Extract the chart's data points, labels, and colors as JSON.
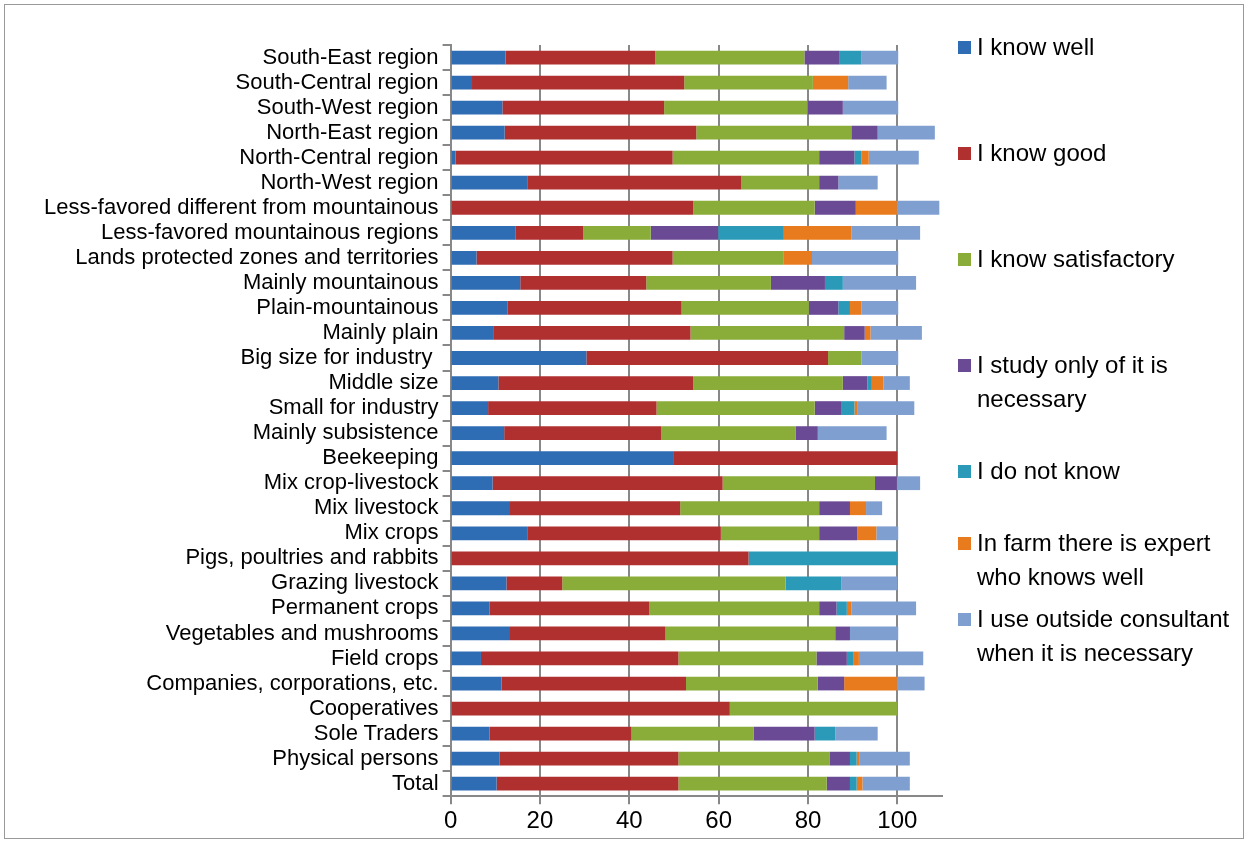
{
  "chart_data": {
    "type": "bar",
    "orientation": "horizontal",
    "stacked": true,
    "grid": "x",
    "legend": "right",
    "categories": [
      "South-East region",
      "South-Central region",
      "South-West region",
      "North-East region",
      "North-Central region",
      "North-West region",
      "Less-favored different from mountainous",
      "Less-favored mountainous regions",
      "Lands protected zones and territories",
      "Mainly mountainous",
      "Plain-mountainous",
      "Mainly plain",
      "Big size for industry ",
      "Middle size",
      "Small for industry",
      "Mainly subsistence",
      "Beekeeping",
      "Mix crop-livestock",
      "Mix livestock",
      "Mix crops",
      "Pigs, poultries and rabbits",
      "Grazing livestock",
      "Permanent crops",
      "Vegetables and mushrooms",
      "Field crops",
      "Companies, corporations, etc.",
      "Cooperatives",
      "Sole Traders",
      "Physical persons",
      "Total"
    ],
    "xlim": [
      0,
      110
    ],
    "xticks": [
      0,
      20,
      40,
      60,
      80,
      100
    ],
    "series": [
      {
        "name": "I know well",
        "color": "#2e6db4",
        "values": [
          12.3,
          4.8,
          11.6,
          12.1,
          1.1,
          17.3,
          0,
          14.6,
          5.8,
          15.6,
          12.7,
          9.7,
          30.4,
          10.7,
          8.4,
          12.0,
          50,
          9.4,
          13.3,
          17.3,
          0,
          12.5,
          8.7,
          13.3,
          6.8,
          11.4,
          0,
          8.7,
          11.0,
          10.3
        ]
      },
      {
        "name": "I know good",
        "color": "#b03030",
        "values": [
          33.5,
          47.5,
          36.2,
          42.9,
          48.6,
          47.8,
          54.3,
          15.1,
          43.9,
          28.2,
          39.0,
          44.0,
          54.1,
          43.6,
          37.7,
          35.1,
          50,
          51.5,
          38.1,
          43.2,
          66.7,
          12.5,
          35.8,
          34.8,
          44.2,
          41.3,
          62.5,
          31.8,
          40.0,
          40.7
        ]
      },
      {
        "name": "I know satisfactory",
        "color": "#8aad3a",
        "values": [
          33.4,
          28.8,
          32.1,
          34.7,
          32.8,
          17.4,
          27.2,
          15.1,
          24.9,
          27.9,
          28.5,
          34.4,
          7.5,
          33.5,
          35.4,
          30.2,
          0,
          34.1,
          31.1,
          22.0,
          0,
          50,
          38.0,
          38.0,
          30.9,
          29.5,
          37.5,
          27.3,
          33.8,
          33.2
        ]
      },
      {
        "name": "I study only of it is necessary",
        "color": "#6a4a94",
        "values": [
          7.9,
          0,
          7.9,
          5.9,
          7.9,
          4.3,
          9.2,
          15.1,
          0,
          12.1,
          6.6,
          4.6,
          0,
          5.5,
          5.9,
          4.9,
          0,
          4.9,
          6.9,
          8.5,
          0,
          0,
          3.9,
          3.3,
          6.8,
          5.9,
          0,
          13.7,
          4.6,
          5.2
        ]
      },
      {
        "name": "I do not know",
        "color": "#2a9ab8",
        "values": [
          4.9,
          0,
          0,
          0,
          1.6,
          0,
          0,
          14.7,
          0,
          4.0,
          2.6,
          0,
          0,
          1.0,
          3.0,
          0,
          0,
          0,
          0,
          0,
          33.3,
          12.5,
          2.3,
          0,
          1.4,
          0,
          0,
          4.6,
          1.5,
          1.5
        ]
      },
      {
        "name": "In farm there is expert who knows well",
        "color": "#e87b1e",
        "values": [
          0,
          7.9,
          0,
          0,
          1.6,
          0,
          9.2,
          15.1,
          6.3,
          0,
          2.6,
          1.3,
          0,
          2.6,
          0.6,
          0,
          0,
          0,
          3.6,
          4.3,
          0,
          0,
          1.0,
          0,
          1.3,
          11.8,
          0,
          0,
          0.7,
          1.3
        ]
      },
      {
        "name": "I use outside consultant when it is necessary",
        "color": "#7f9fd0",
        "values": [
          8.2,
          8.6,
          12.4,
          12.8,
          11.2,
          8.8,
          9.5,
          15.4,
          19.3,
          16.4,
          8.2,
          11.5,
          8.2,
          5.9,
          12.8,
          15.4,
          0,
          5.2,
          3.6,
          4.9,
          0,
          12.5,
          14.5,
          10.8,
          14.4,
          6.2,
          0,
          9.5,
          11.2,
          10.6
        ]
      }
    ]
  }
}
